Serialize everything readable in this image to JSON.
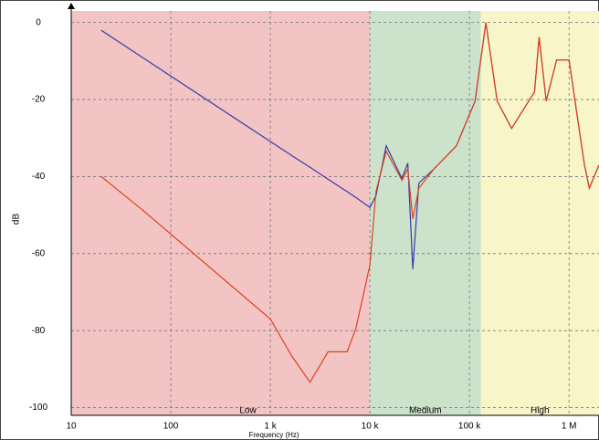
{
  "chart_data": {
    "type": "line",
    "x_label": "Frequency (Hz)",
    "y_label": "dB",
    "x": [
      20,
      50,
      1000,
      1650,
      2500,
      3800,
      5900,
      7200,
      10000,
      11500,
      14600,
      21000,
      24000,
      27000,
      31000,
      44000,
      74000,
      114000,
      146000,
      190000,
      265000,
      450000,
      500000,
      590000,
      750000,
      1000000,
      1220000,
      1430000,
      1600000,
      2000000
    ],
    "series": [
      {
        "color": "#3a3aa8",
        "values": [
          -2,
          -8.8,
          -30.9,
          -34.6,
          -37.6,
          -40.7,
          -43.9,
          -45.4,
          -48,
          -45,
          -32,
          -40.5,
          -36.5,
          -64,
          -41.7,
          -38,
          -32,
          -20.4,
          0,
          -20.4,
          -27.5,
          -18,
          -3.8,
          -20.4,
          -9.7,
          -9.7,
          -25,
          -37,
          -43,
          -37
        ]
      },
      {
        "color": "#e0401c",
        "values": [
          -40,
          -48.3,
          -77,
          -86.7,
          -93.4,
          -85.5,
          -85.5,
          -79.6,
          -63,
          -44,
          -33.4,
          -41,
          -38,
          -51,
          -43,
          -38,
          -32,
          -20.4,
          0,
          -20.4,
          -27.5,
          -18,
          -3.8,
          -20.4,
          -9.7,
          -9.7,
          -25,
          -37,
          -43,
          -37
        ]
      }
    ],
    "regions": [
      {
        "label": "Low",
        "from": 10,
        "to": 10000,
        "color": "#f3c4c4"
      },
      {
        "label": "Medium",
        "from": 10000,
        "to": 130000,
        "color": "#cde2cb"
      },
      {
        "label": "High",
        "from": 130000,
        "to": 2000000,
        "color": "#f8f6c8"
      }
    ],
    "xscale": "log",
    "xlim": [
      10,
      2000000
    ],
    "xticks": [
      10,
      100,
      {
        "value": 1000,
        "label": "1 k"
      },
      {
        "value": 10000,
        "label": "10 k"
      },
      {
        "value": 100000,
        "label": "100 k"
      },
      {
        "value": 1000000,
        "label": "1 M"
      }
    ],
    "ylim": [
      -102,
      3
    ],
    "yticks": [
      0,
      -20,
      -40,
      -60,
      -80,
      -100
    ],
    "grid": true
  }
}
